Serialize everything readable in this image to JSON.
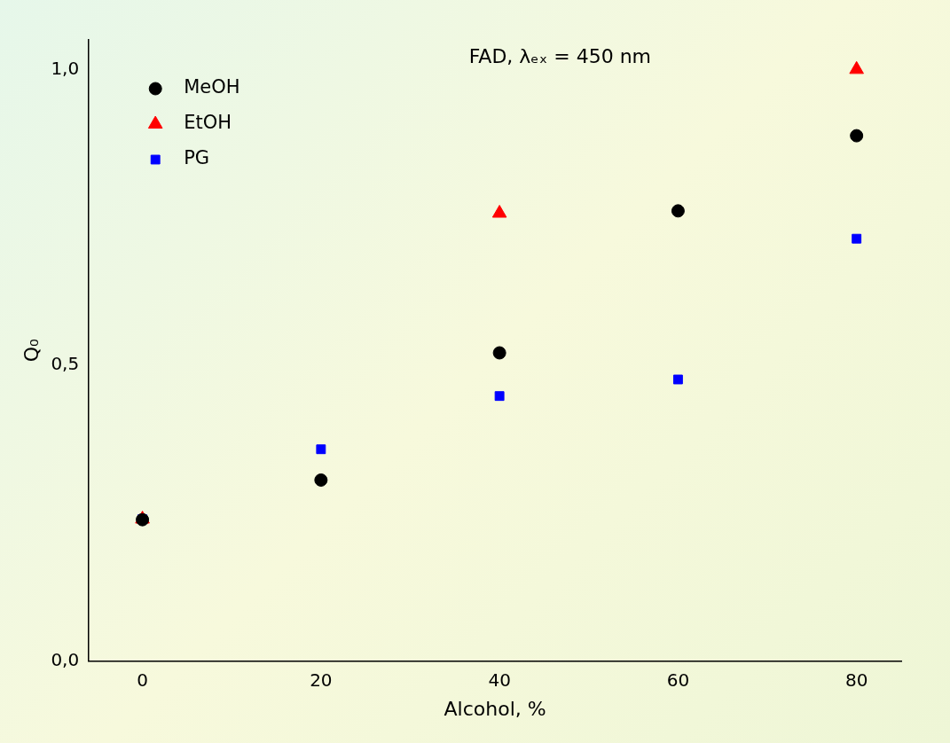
{
  "chart_data": {
    "type": "scatter",
    "title": "FAD, λₑₓ = 450 nm",
    "x_label": "Alcohol, %",
    "y_label": "Q₀",
    "xlim": [
      -6,
      85
    ],
    "xticks": [
      0,
      20,
      40,
      60,
      80
    ],
    "ylim": [
      0,
      1.05
    ],
    "yticks": [
      {
        "value": 0,
        "label": "0,0"
      },
      {
        "value": 0.5,
        "label": "0,5"
      },
      {
        "value": 1,
        "label": "1,0"
      }
    ],
    "grid": false,
    "legend": "upper left",
    "series": [
      {
        "name": "MeOH",
        "color": "#000000",
        "marker": "circle",
        "x": [
          0,
          20,
          40,
          60,
          80
        ],
        "values": [
          0.239,
          0.306,
          0.521,
          0.761,
          0.888
        ]
      },
      {
        "name": "EtOH",
        "color": "#ff0000",
        "marker": "triangle",
        "x": [
          0,
          40,
          80
        ],
        "values": [
          0.24,
          0.757,
          1.0
        ]
      },
      {
        "name": "PG",
        "color": "#0000ff",
        "marker": "square",
        "x": [
          0,
          20,
          40,
          60,
          80
        ],
        "values": [
          0.24,
          0.358,
          0.448,
          0.476,
          0.714
        ]
      }
    ]
  }
}
